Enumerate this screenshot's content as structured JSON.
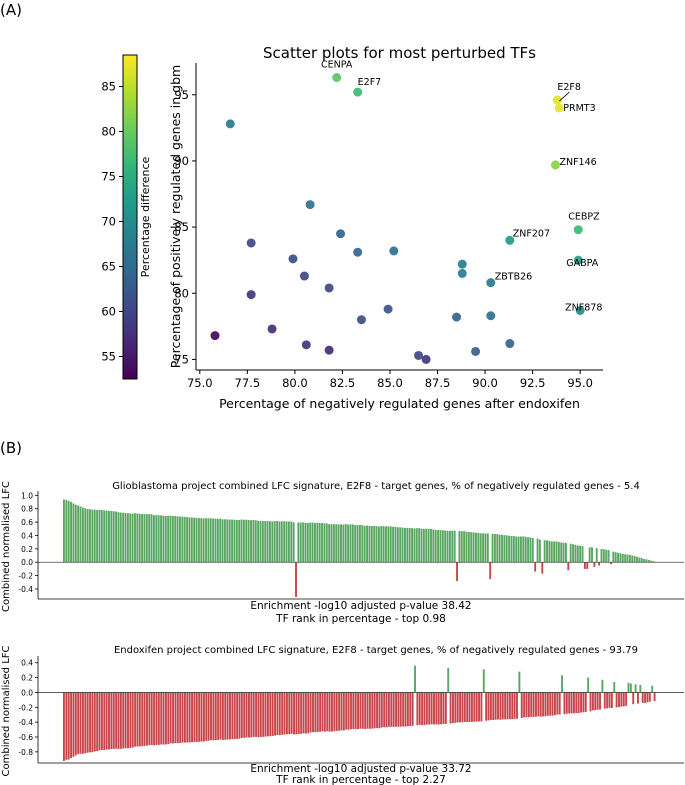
{
  "panel_a_label": "(A)",
  "panel_b_label": "(B)",
  "chart_data": [
    {
      "type": "scatter",
      "title": "Scatter plots for most perturbed TFs",
      "xlabel": "Percentage of negatively regulated genes after endoxifen",
      "ylabel": "Percentage of positively regulated genes in gbm",
      "xlim": [
        74.8,
        96.2
      ],
      "ylim": [
        74.2,
        97.4
      ],
      "x_ticks": [
        75.0,
        77.5,
        80.0,
        82.5,
        85.0,
        87.5,
        90.0,
        92.5,
        95.0
      ],
      "y_ticks": [
        75,
        80,
        85,
        90,
        95
      ],
      "grid": false,
      "colorbar": {
        "label": "Percentage difference",
        "colormap": "viridis",
        "range": [
          52.5,
          88.5
        ],
        "ticks": [
          55,
          60,
          65,
          70,
          75,
          80,
          85
        ]
      },
      "points": [
        {
          "x": 75.8,
          "y": 76.8,
          "c": 53,
          "label": ""
        },
        {
          "x": 76.6,
          "y": 92.8,
          "c": 67,
          "label": ""
        },
        {
          "x": 77.7,
          "y": 83.8,
          "c": 60,
          "label": ""
        },
        {
          "x": 77.7,
          "y": 79.9,
          "c": 58,
          "label": ""
        },
        {
          "x": 78.8,
          "y": 77.3,
          "c": 57,
          "label": ""
        },
        {
          "x": 79.9,
          "y": 82.6,
          "c": 61,
          "label": ""
        },
        {
          "x": 80.5,
          "y": 81.3,
          "c": 60,
          "label": ""
        },
        {
          "x": 80.6,
          "y": 76.1,
          "c": 58,
          "label": ""
        },
        {
          "x": 80.8,
          "y": 86.7,
          "c": 66,
          "label": ""
        },
        {
          "x": 81.8,
          "y": 80.4,
          "c": 60,
          "label": ""
        },
        {
          "x": 81.8,
          "y": 75.7,
          "c": 57,
          "label": ""
        },
        {
          "x": 82.2,
          "y": 96.3,
          "c": 79,
          "label": "CENPA"
        },
        {
          "x": 82.4,
          "y": 84.5,
          "c": 64,
          "label": ""
        },
        {
          "x": 83.3,
          "y": 95.2,
          "c": 77,
          "label": "E2F7"
        },
        {
          "x": 83.3,
          "y": 83.1,
          "c": 64,
          "label": ""
        },
        {
          "x": 83.5,
          "y": 78.0,
          "c": 61,
          "label": ""
        },
        {
          "x": 84.9,
          "y": 78.8,
          "c": 62,
          "label": ""
        },
        {
          "x": 85.2,
          "y": 83.2,
          "c": 66,
          "label": ""
        },
        {
          "x": 86.5,
          "y": 75.3,
          "c": 60,
          "label": ""
        },
        {
          "x": 86.9,
          "y": 75.0,
          "c": 58,
          "label": ""
        },
        {
          "x": 88.5,
          "y": 78.2,
          "c": 64,
          "label": ""
        },
        {
          "x": 88.8,
          "y": 82.2,
          "c": 68,
          "label": ""
        },
        {
          "x": 88.8,
          "y": 81.5,
          "c": 68,
          "label": ""
        },
        {
          "x": 89.5,
          "y": 75.6,
          "c": 63,
          "label": ""
        },
        {
          "x": 90.3,
          "y": 80.8,
          "c": 67,
          "label": "ZBTB26"
        },
        {
          "x": 90.3,
          "y": 78.3,
          "c": 66,
          "label": ""
        },
        {
          "x": 91.3,
          "y": 84.0,
          "c": 72,
          "label": "ZNF207"
        },
        {
          "x": 91.3,
          "y": 76.2,
          "c": 64,
          "label": ""
        },
        {
          "x": 93.7,
          "y": 89.7,
          "c": 82,
          "label": "ZNF146"
        },
        {
          "x": 93.8,
          "y": 94.6,
          "c": 87,
          "label": "E2F8"
        },
        {
          "x": 93.9,
          "y": 94.0,
          "c": 87,
          "label": "PRMT3"
        },
        {
          "x": 94.9,
          "y": 84.8,
          "c": 77,
          "label": "CEBPZ"
        },
        {
          "x": 94.9,
          "y": 82.5,
          "c": 73,
          "label": "GABPA"
        },
        {
          "x": 95.0,
          "y": 78.7,
          "c": 70,
          "label": "ZNF878"
        }
      ]
    },
    {
      "type": "bar",
      "title": "Glioblastoma project combined LFC signature, E2F8 - target genes, % of negatively regulated genes - 5.4",
      "ylabel": "Combined normalised LFC",
      "ylim": [
        -0.55,
        1.02
      ],
      "y_ticks": [
        1.0,
        0.8,
        0.6,
        0.4,
        0.2,
        0.0,
        -0.2,
        -0.4
      ],
      "footer": [
        "Enrichment -log10 adjusted p-value 38.42",
        "TF rank in percentage - top 0.98"
      ],
      "n_bars": 250,
      "positive_profile": [
        [
          0,
          0.94
        ],
        [
          2,
          0.92
        ],
        [
          5,
          0.86
        ],
        [
          10,
          0.8
        ],
        [
          30,
          0.73
        ],
        [
          60,
          0.66
        ],
        [
          100,
          0.6
        ],
        [
          140,
          0.53
        ],
        [
          170,
          0.46
        ],
        [
          195,
          0.38
        ],
        [
          215,
          0.27
        ],
        [
          230,
          0.18
        ],
        [
          240,
          0.1
        ],
        [
          249,
          0.02
        ]
      ],
      "negative_bars": [
        {
          "index": 98,
          "value": -0.52
        },
        {
          "index": 166,
          "value": -0.28
        },
        {
          "index": 180,
          "value": -0.25
        },
        {
          "index": 199,
          "value": -0.14
        },
        {
          "index": 202,
          "value": -0.17
        },
        {
          "index": 213,
          "value": -0.12
        },
        {
          "index": 220,
          "value": -0.1
        },
        {
          "index": 221,
          "value": -0.1
        },
        {
          "index": 224,
          "value": -0.07
        },
        {
          "index": 226,
          "value": -0.05
        },
        {
          "index": 231,
          "value": -0.03
        }
      ]
    },
    {
      "type": "bar",
      "title": "Endoxifen project combined LFC signature, E2F8 - target genes, % of negatively regulated genes - 93.79",
      "ylabel": "Combined normalised LFC",
      "ylim": [
        -0.95,
        0.45
      ],
      "y_ticks": [
        0.4,
        0.2,
        0.0,
        -0.2,
        -0.4,
        -0.6,
        -0.8
      ],
      "footer": [
        "Enrichment -log10 adjusted p-value 33.72",
        "TF rank in percentage - top 2.27"
      ],
      "n_bars": 250,
      "negative_profile": [
        [
          0,
          -0.92
        ],
        [
          2,
          -0.9
        ],
        [
          6,
          -0.83
        ],
        [
          15,
          -0.78
        ],
        [
          40,
          -0.7
        ],
        [
          80,
          -0.6
        ],
        [
          120,
          -0.5
        ],
        [
          160,
          -0.42
        ],
        [
          190,
          -0.35
        ],
        [
          215,
          -0.28
        ],
        [
          232,
          -0.2
        ],
        [
          244,
          -0.14
        ],
        [
          249,
          -0.11
        ]
      ],
      "positive_bars": [
        {
          "index": 148,
          "value": 0.36
        },
        {
          "index": 162,
          "value": 0.33
        },
        {
          "index": 177,
          "value": 0.31
        },
        {
          "index": 192,
          "value": 0.28
        },
        {
          "index": 210,
          "value": 0.23
        },
        {
          "index": 221,
          "value": 0.2
        },
        {
          "index": 227,
          "value": 0.17
        },
        {
          "index": 232,
          "value": 0.14
        },
        {
          "index": 238,
          "value": 0.13
        },
        {
          "index": 239,
          "value": 0.12
        },
        {
          "index": 241,
          "value": 0.11
        },
        {
          "index": 243,
          "value": 0.1
        },
        {
          "index": 248,
          "value": 0.09
        }
      ]
    }
  ]
}
